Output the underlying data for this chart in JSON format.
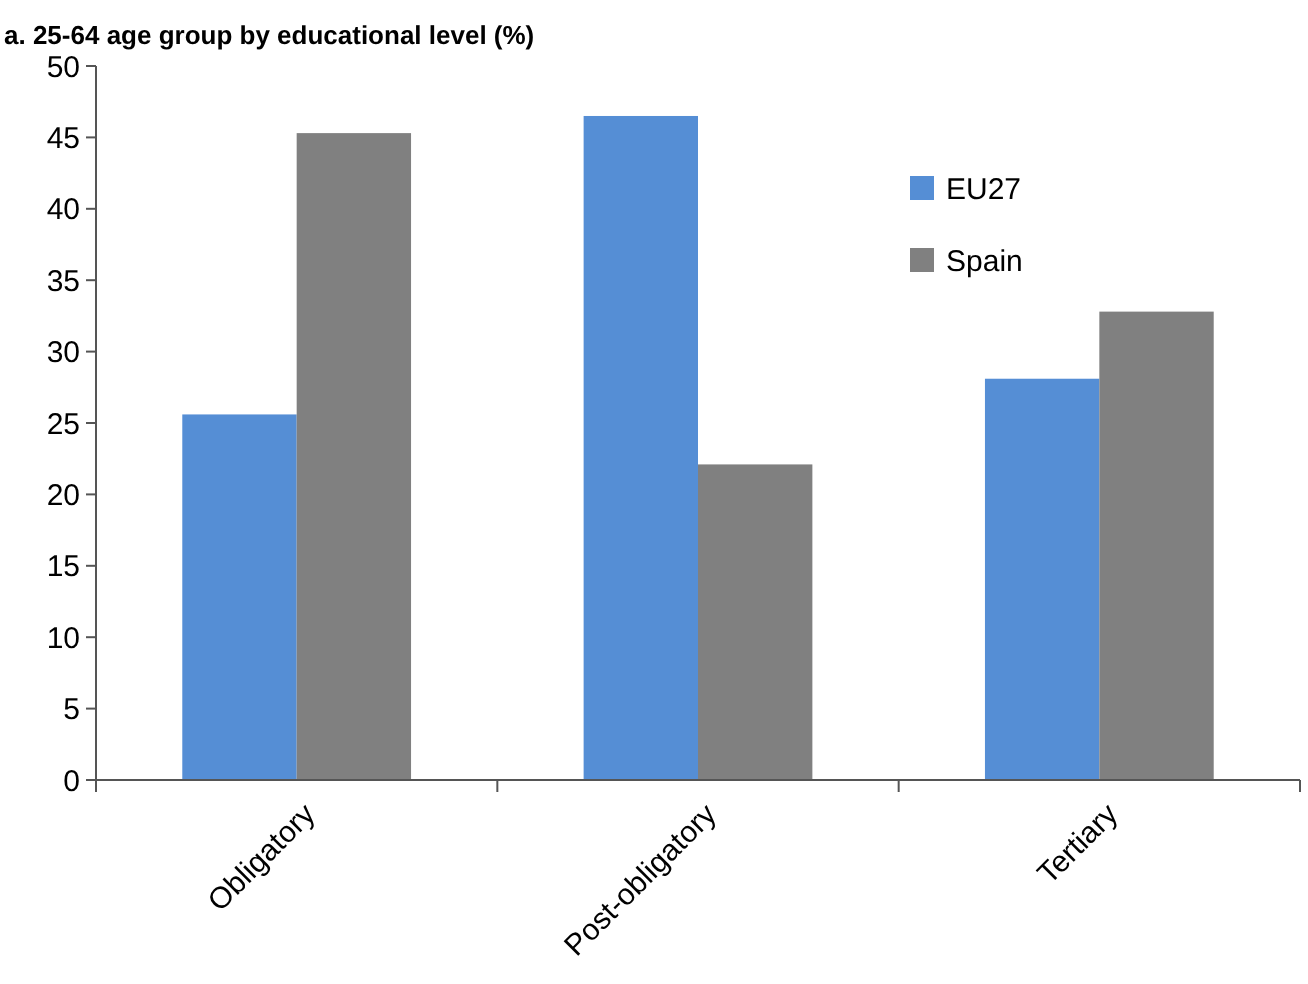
{
  "chart_data": {
    "type": "bar",
    "title": "a. 25-64 age group by educational level (%)",
    "categories": [
      "Obligatory",
      "Post-obligatory",
      "Tertiary"
    ],
    "series": [
      {
        "name": "EU27",
        "color": "#558ed5",
        "values": [
          25.6,
          46.5,
          28.1
        ]
      },
      {
        "name": "Spain",
        "color": "#808080",
        "values": [
          45.3,
          22.1,
          32.8
        ]
      }
    ],
    "ylim": [
      0,
      50
    ],
    "yticks": [
      0,
      5,
      10,
      15,
      20,
      25,
      30,
      35,
      40,
      45,
      50
    ],
    "grid": false,
    "legend": "top right"
  }
}
